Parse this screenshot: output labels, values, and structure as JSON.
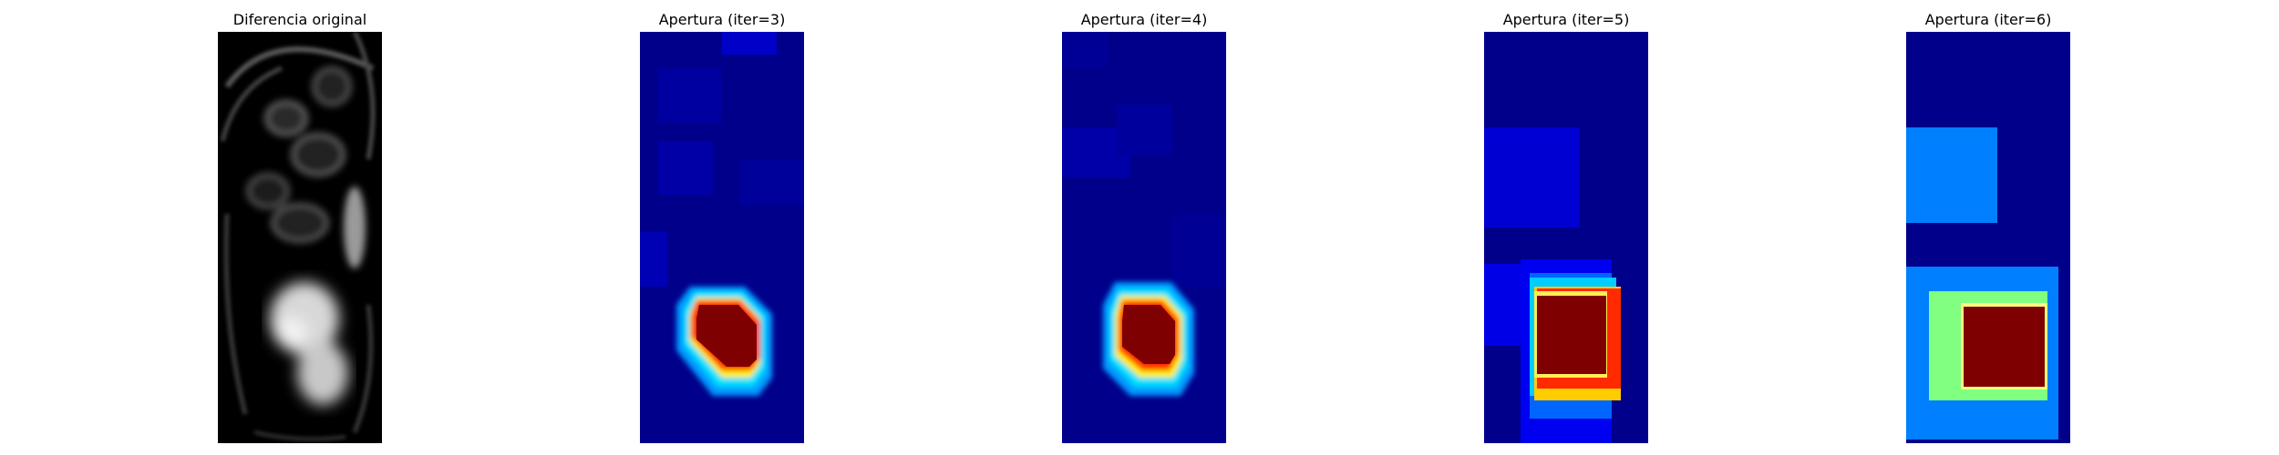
{
  "figure": {
    "panels": [
      {
        "title": "Diferencia original"
      },
      {
        "title": "Apertura (iter=3)"
      },
      {
        "title": "Apertura (iter=4)"
      },
      {
        "title": "Apertura (iter=5)"
      },
      {
        "title": "Apertura (iter=6)"
      }
    ]
  },
  "colors": {
    "background": "#ffffff",
    "colormap_jet_low": "#00008b",
    "colormap_jet_mid": "#7fff7f",
    "colormap_jet_high": "#7f0000",
    "grayscale_low": "#000000",
    "grayscale_high": "#ffffff"
  }
}
